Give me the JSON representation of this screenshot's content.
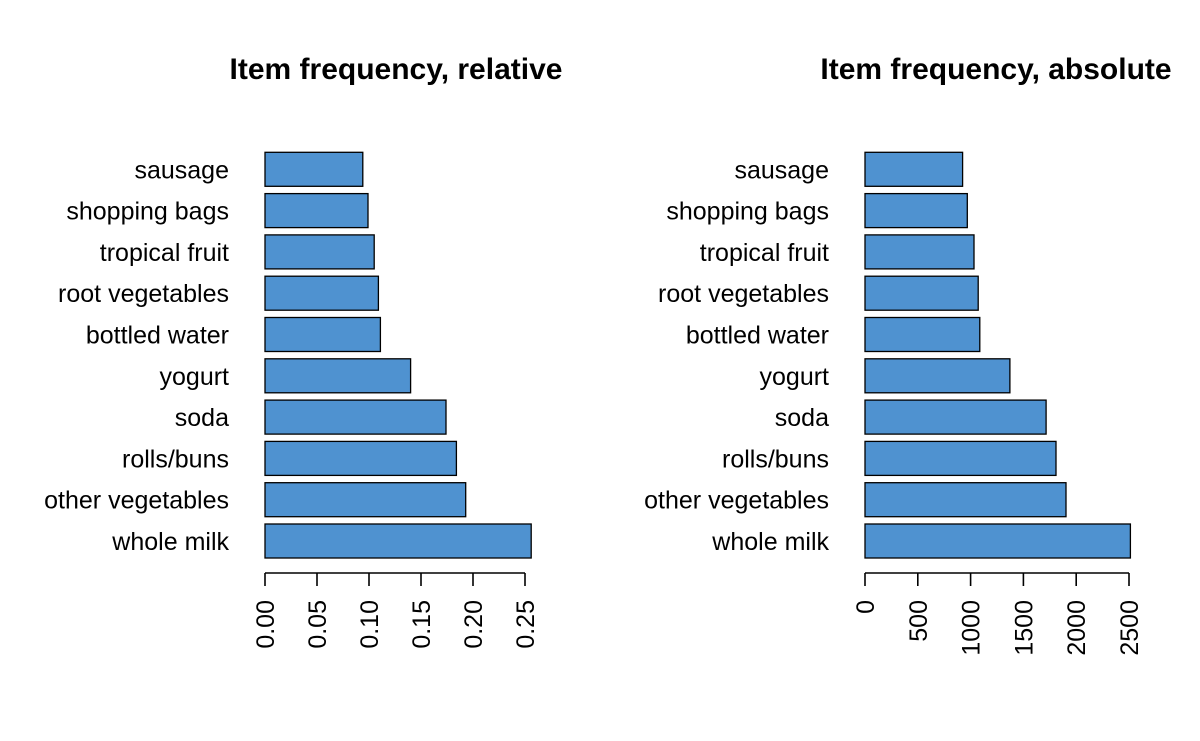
{
  "colors": {
    "bar_fill": "#4f92d0",
    "bar_stroke": "#000000",
    "text": "#000000"
  },
  "chart_data": [
    {
      "type": "bar",
      "orientation": "horizontal",
      "title": "Item frequency, relative",
      "xlabel": "",
      "ylabel": "",
      "categories": [
        "sausage",
        "shopping bags",
        "tropical fruit",
        "root vegetables",
        "bottled water",
        "yogurt",
        "soda",
        "rolls/buns",
        "other vegetables",
        "whole milk"
      ],
      "values": [
        0.094,
        0.099,
        0.105,
        0.109,
        0.111,
        0.14,
        0.174,
        0.184,
        0.193,
        0.256
      ],
      "xlim": [
        0,
        0.25
      ],
      "ticks": [
        0.0,
        0.05,
        0.1,
        0.15,
        0.2,
        0.25
      ],
      "tick_labels": [
        "0.00",
        "0.05",
        "0.10",
        "0.15",
        "0.20",
        "0.25"
      ],
      "grid": false,
      "legend": "none"
    },
    {
      "type": "bar",
      "orientation": "horizontal",
      "title": "Item frequency, absolute",
      "xlabel": "",
      "ylabel": "",
      "categories": [
        "sausage",
        "shopping bags",
        "tropical fruit",
        "root vegetables",
        "bottled water",
        "yogurt",
        "soda",
        "rolls/buns",
        "other vegetables",
        "whole milk"
      ],
      "values": [
        924,
        969,
        1032,
        1072,
        1087,
        1372,
        1715,
        1809,
        1903,
        2513
      ],
      "xlim": [
        0,
        2500
      ],
      "ticks": [
        0,
        500,
        1000,
        1500,
        2000,
        2500
      ],
      "tick_labels": [
        "0",
        "500",
        "1000",
        "1500",
        "2000",
        "2500"
      ],
      "grid": false,
      "legend": "none"
    }
  ]
}
